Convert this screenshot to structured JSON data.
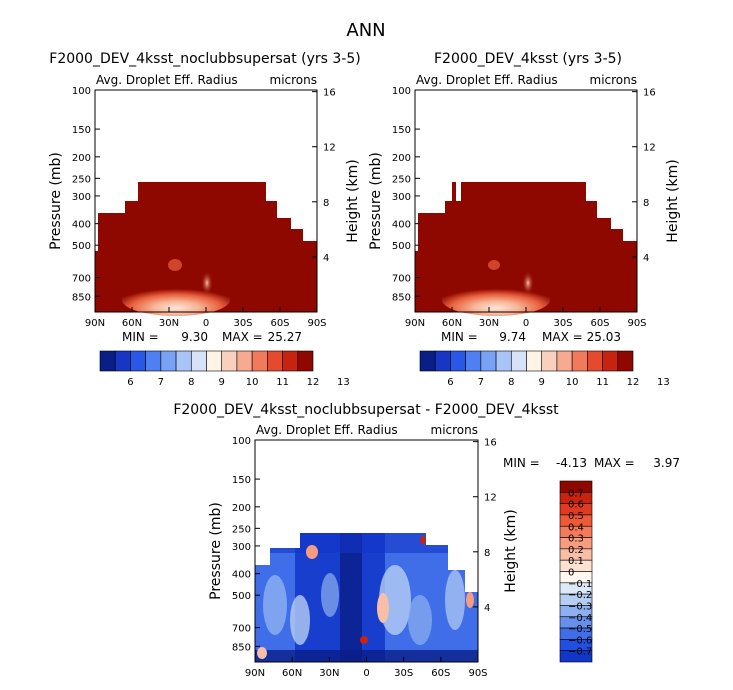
{
  "page": {
    "title": "ANN"
  },
  "chart_data": [
    {
      "type": "heatmap",
      "id": "p1",
      "title": "F2000_DEV_4ksst_noclubbsupersat (yrs 3-5)",
      "subtitle_left": "Avg. Droplet Eff. Radius",
      "subtitle_right": "microns",
      "ylabel": "Pressure (mb)",
      "ylabel_right": "Height (km)",
      "x_ticks": [
        "90N",
        "60N",
        "30N",
        "0",
        "30S",
        "60S",
        "90S"
      ],
      "y_ticks": [
        100,
        150,
        200,
        250,
        300,
        400,
        500,
        700,
        850
      ],
      "y_right_ticks": [
        16,
        12,
        8,
        4
      ],
      "stats": {
        "min_label": "MIN =",
        "min": "9.30",
        "max_label": "MAX =",
        "max": "25.27"
      },
      "colorbar": {
        "labels": [
          "6",
          "7",
          "8",
          "9",
          "10",
          "11",
          "12",
          "13"
        ],
        "colors": [
          "#0a1e88",
          "#1736c4",
          "#2a58e6",
          "#4f80f2",
          "#7aa2f4",
          "#a9c4f6",
          "#d5e2f8",
          "#fff2e6",
          "#f9d0bd",
          "#f6aa8f",
          "#f27a5c",
          "#e64a2e",
          "#c82310",
          "#8f0800"
        ]
      }
    },
    {
      "type": "heatmap",
      "id": "p2",
      "title": "F2000_DEV_4ksst (yrs 3-5)",
      "subtitle_left": "Avg. Droplet Eff. Radius",
      "subtitle_right": "microns",
      "ylabel": "Pressure (mb)",
      "ylabel_right": "Height (km)",
      "x_ticks": [
        "90N",
        "60N",
        "30N",
        "0",
        "30S",
        "60S",
        "90S"
      ],
      "y_ticks": [
        100,
        150,
        200,
        250,
        300,
        400,
        500,
        700,
        850
      ],
      "y_right_ticks": [
        16,
        12,
        8,
        4
      ],
      "stats": {
        "min_label": "MIN =",
        "min": "9.74",
        "max_label": "MAX =",
        "max": "25.03"
      },
      "colorbar": {
        "labels": [
          "6",
          "7",
          "8",
          "9",
          "10",
          "11",
          "12",
          "13"
        ],
        "colors": [
          "#0a1e88",
          "#1736c4",
          "#2a58e6",
          "#4f80f2",
          "#7aa2f4",
          "#a9c4f6",
          "#d5e2f8",
          "#fff2e6",
          "#f9d0bd",
          "#f6aa8f",
          "#f27a5c",
          "#e64a2e",
          "#c82310",
          "#8f0800"
        ]
      }
    },
    {
      "type": "heatmap",
      "id": "p3",
      "title": "F2000_DEV_4ksst_noclubbsupersat - F2000_DEV_4ksst",
      "subtitle_left": "Avg. Droplet Eff. Radius",
      "subtitle_right": "microns",
      "ylabel": "Pressure (mb)",
      "ylabel_right": "Height (km)",
      "x_ticks": [
        "90N",
        "60N",
        "30N",
        "0",
        "30S",
        "60S",
        "90S"
      ],
      "y_ticks": [
        100,
        150,
        200,
        250,
        300,
        400,
        500,
        700,
        850
      ],
      "y_right_ticks": [
        16,
        12,
        8,
        4
      ],
      "stats": {
        "min_label": "MIN =",
        "min": "-4.13",
        "max_label": "MAX =",
        "max": "3.97"
      },
      "colorbar": {
        "labels": [
          "0.7",
          "0.6",
          "0.5",
          "0.4",
          "0.3",
          "0.2",
          "0.1",
          "0",
          "−0.1",
          "−0.2",
          "−0.3",
          "−0.4",
          "−0.5",
          "−0.6",
          "−0.7"
        ],
        "colors": [
          "#8f0800",
          "#c82310",
          "#e03a20",
          "#ee5a38",
          "#f47a5a",
          "#f79c80",
          "#f9bea6",
          "#fde2d2",
          "#fff8f0",
          "#dde8f8",
          "#b6cdf4",
          "#8fb0f0",
          "#6690ec",
          "#3f6ee8",
          "#2150e0",
          "#1236c8"
        ]
      }
    }
  ]
}
